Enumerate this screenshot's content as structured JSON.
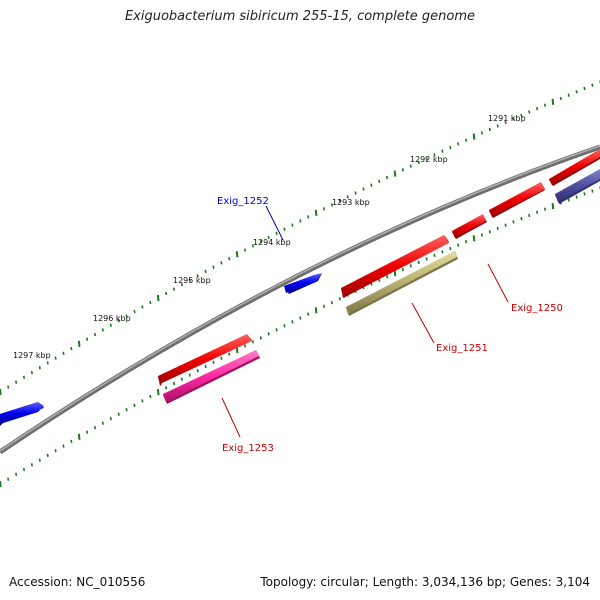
{
  "title": "Exiguobacterium sibiricum 255-15, complete genome",
  "footer": {
    "accession": "Accession: NC_010556",
    "stats": "Topology: circular; Length: 3,034,136 bp; Genes: 3,104"
  },
  "scale_labels": [
    "1291 kbp",
    "1292 kbp",
    "1293 kbp",
    "1294 kbp",
    "1295 kbp",
    "1296 kbp",
    "1297 kbp"
  ],
  "genes": [
    {
      "name": "Exig_1252",
      "color": "#0000cc",
      "strand": "forward"
    },
    {
      "name": "Exig_1250",
      "color": "#cc0000",
      "strand": "reverse"
    },
    {
      "name": "Exig_1251",
      "color": "#cc0000",
      "strand": "reverse"
    },
    {
      "name": "Exig_1253",
      "color": "#cc0000",
      "strand": "reverse"
    }
  ],
  "colors": {
    "backbone": "#808080",
    "tick": "#1a7a1a",
    "forward_gene": "#0000ee",
    "reverse_gene": "#ee0000",
    "olive_feature": "#b8b070",
    "magenta_feature": "#ff2aa0",
    "slate_feature": "#5050a0"
  }
}
